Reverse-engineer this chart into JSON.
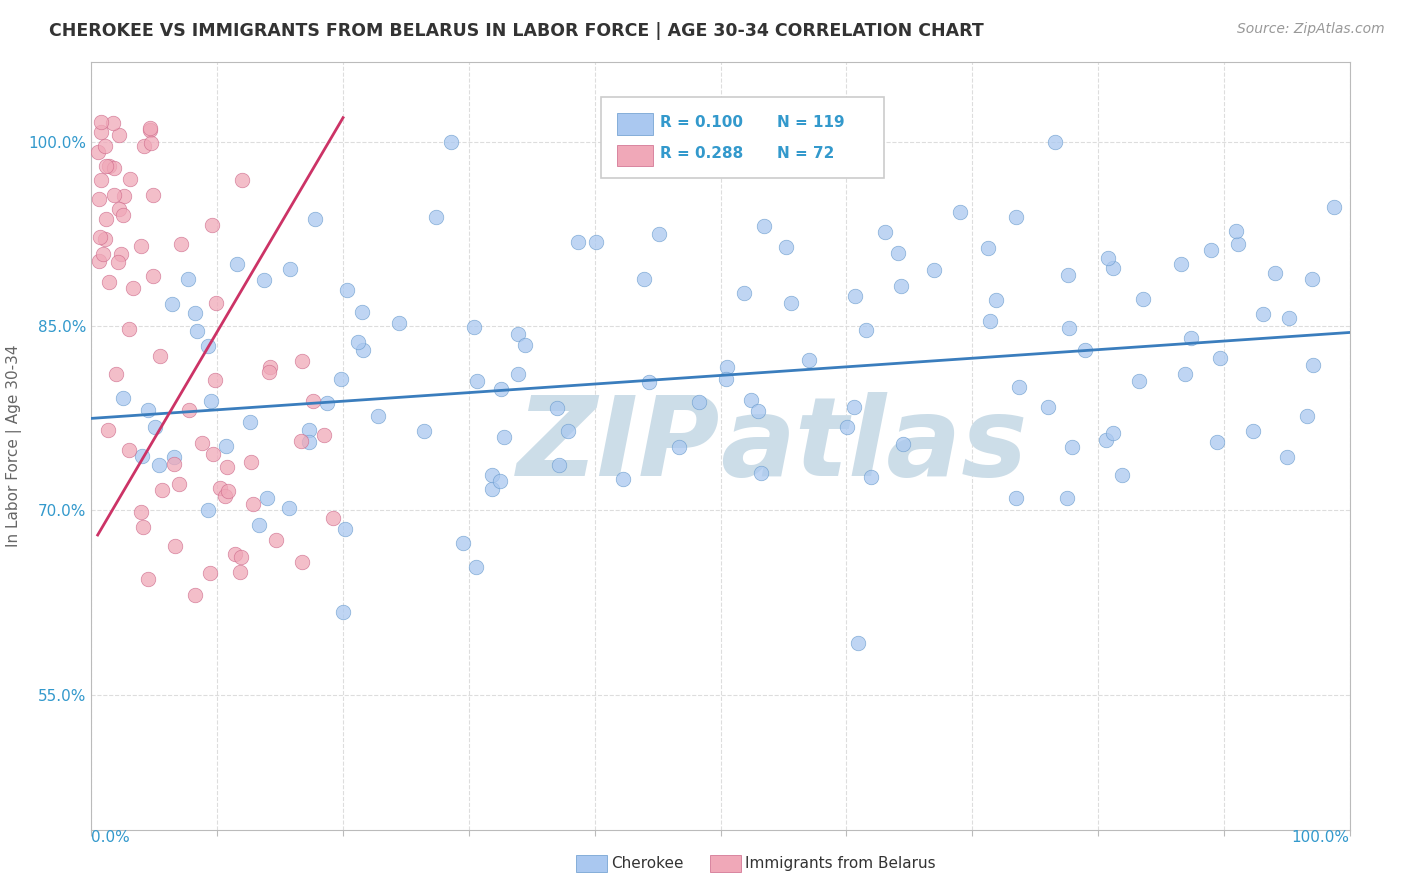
{
  "title": "CHEROKEE VS IMMIGRANTS FROM BELARUS IN LABOR FORCE | AGE 30-34 CORRELATION CHART",
  "source": "Source: ZipAtlas.com",
  "ylabel": "In Labor Force | Age 30-34",
  "xlim": [
    0.0,
    1.0
  ],
  "ylim": [
    0.44,
    1.065
  ],
  "ytick_positions": [
    0.55,
    0.7,
    0.85,
    1.0
  ],
  "ytick_labels": [
    "55.0%",
    "70.0%",
    "85.0%",
    "100.0%"
  ],
  "legend_r1": "R = 0.100",
  "legend_n1": "N = 119",
  "legend_r2": "R = 0.288",
  "legend_n2": "N = 72",
  "cherokee_color": "#aac8f0",
  "cherokee_edge_color": "#6699cc",
  "belarus_color": "#f0a8b8",
  "belarus_edge_color": "#cc6688",
  "trendline_cherokee_color": "#3a7dbd",
  "trendline_belarus_color": "#cc3366",
  "watermark_color": "#ccdde8",
  "legend_text_color": "#3399cc",
  "background_color": "#ffffff",
  "grid_color": "#dddddd",
  "title_color": "#333333",
  "source_color": "#999999",
  "ylabel_color": "#666666",
  "axis_label_color": "#3399cc"
}
